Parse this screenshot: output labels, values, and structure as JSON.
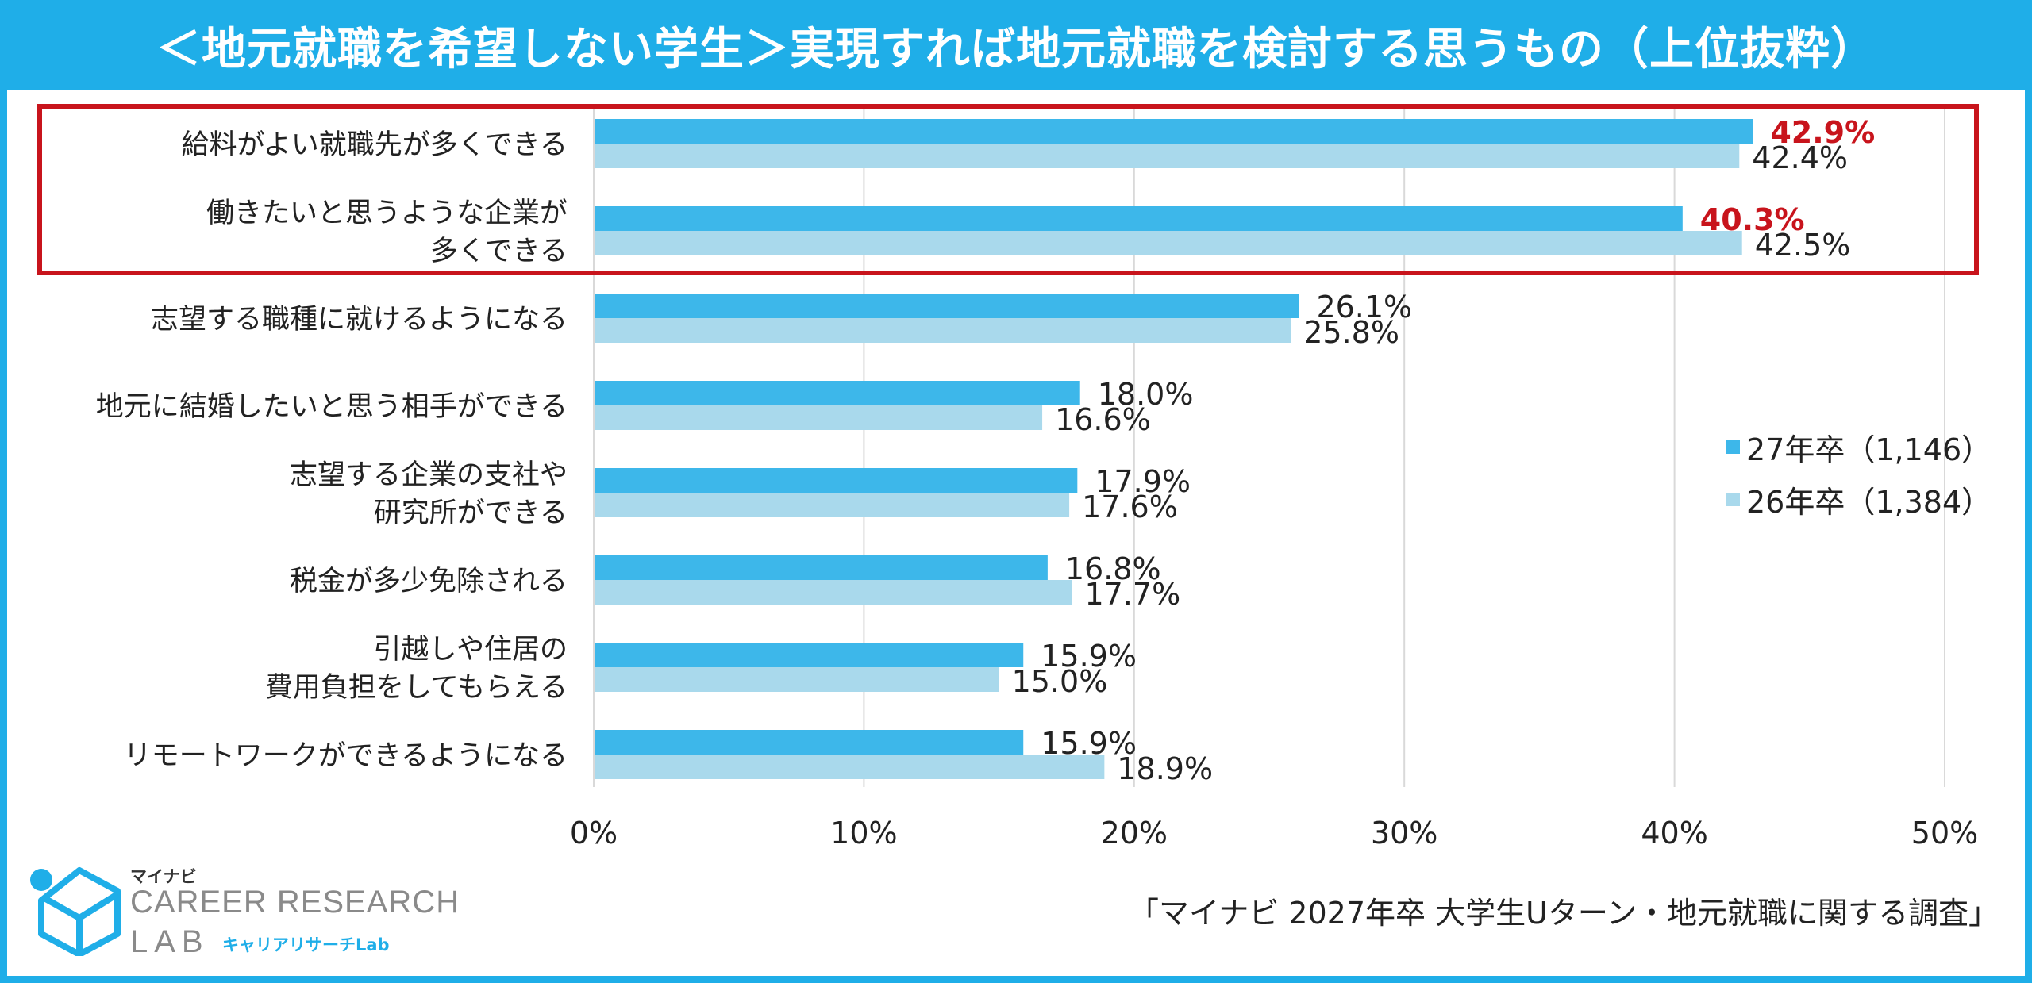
{
  "title": "＜地元就職を希望しない学生＞実現すれば地元就職を検討する思うもの（上位抜粋）",
  "chart_data": {
    "type": "bar",
    "orientation": "horizontal",
    "categories": [
      "給料がよい就職先が多くできる",
      "働きたいと思うような企業が\n多くできる",
      "志望する職種に就けるようになる",
      "地元に結婚したいと思う相手ができる",
      "志望する企業の支社や\n研究所ができる",
      "税金が多少免除される",
      "引越しや住居の\n費用負担をしてもらえる",
      "リモートワークができるようになる"
    ],
    "series": [
      {
        "name": "27年卒（1,146）",
        "color": "#3db7ea",
        "values": [
          42.9,
          40.3,
          26.1,
          18.0,
          17.9,
          16.8,
          15.9,
          15.9
        ]
      },
      {
        "name": "26年卒（1,384）",
        "color": "#a9d9ec",
        "values": [
          42.4,
          42.5,
          25.8,
          16.6,
          17.6,
          17.7,
          15.0,
          18.9
        ]
      }
    ],
    "value_format": "%",
    "xlim": [
      0,
      50
    ],
    "xticks": [
      "0%",
      "10%",
      "20%",
      "30%",
      "40%",
      "50%"
    ],
    "grid": true,
    "legend_position": "right",
    "highlight": {
      "categories": [
        0,
        1
      ],
      "box_color": "#c8141c",
      "label_color": "#c8141c",
      "series": 0
    }
  },
  "logo": {
    "brand": "マイナビ",
    "line1": "CAREER RESEARCH",
    "line2": "LAB",
    "sub": "キャリアリサーチLab",
    "colors": {
      "circle": "#1faee8",
      "cube": "#1faee8"
    }
  },
  "source": "「マイナビ 2027年卒 大学生Uターン・地元就職に関する調査」"
}
